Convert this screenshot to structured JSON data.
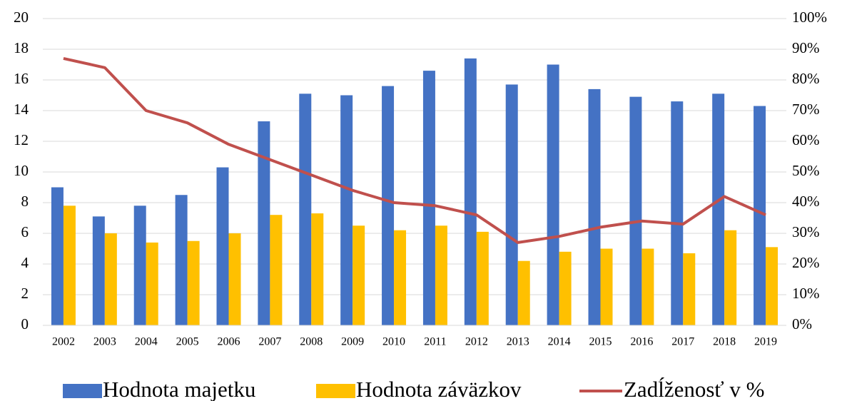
{
  "chart_data": {
    "type": "bar_line",
    "categories": [
      "2002",
      "2003",
      "2004",
      "2005",
      "2006",
      "2007",
      "2008",
      "2009",
      "2010",
      "2011",
      "2012",
      "2013",
      "2014",
      "2015",
      "2016",
      "2017",
      "2018",
      "2019"
    ],
    "series": [
      {
        "name": "Hodnota majetku",
        "type": "bar",
        "color": "#4472c4",
        "values": [
          9.0,
          7.1,
          7.8,
          8.5,
          10.3,
          13.3,
          15.1,
          15.0,
          15.6,
          16.6,
          17.4,
          15.7,
          17.0,
          15.4,
          14.9,
          14.6,
          15.1,
          14.3
        ]
      },
      {
        "name": "Hodnota záväzkov",
        "type": "bar",
        "color": "#ffc000",
        "values": [
          7.8,
          6.0,
          5.4,
          5.5,
          6.0,
          7.2,
          7.3,
          6.5,
          6.2,
          6.5,
          6.1,
          4.2,
          4.8,
          5.0,
          5.0,
          4.7,
          6.2,
          5.1
        ]
      },
      {
        "name": "Zadĺženosť v %",
        "type": "line",
        "axis": "y2",
        "color": "#c0504d",
        "values": [
          87,
          84,
          70,
          66,
          59,
          54,
          49,
          44,
          40,
          39,
          36,
          27,
          29,
          32,
          34,
          33,
          42,
          36
        ]
      }
    ],
    "ylim": [
      0,
      20
    ],
    "yticks": [
      0,
      2,
      4,
      6,
      8,
      10,
      12,
      14,
      16,
      18,
      20
    ],
    "y2lim": [
      0,
      100
    ],
    "y2ticks": [
      {
        "value": 0,
        "label": "0%"
      },
      {
        "value": 10,
        "label": "10%"
      },
      {
        "value": 20,
        "label": "20%"
      },
      {
        "value": 30,
        "label": "30%"
      },
      {
        "value": 40,
        "label": "40%"
      },
      {
        "value": 50,
        "label": "50%"
      },
      {
        "value": 60,
        "label": "60%"
      },
      {
        "value": 70,
        "label": "70%"
      },
      {
        "value": 80,
        "label": "80%"
      },
      {
        "value": 90,
        "label": "90%"
      },
      {
        "value": 100,
        "label": "100%"
      }
    ],
    "grid": true,
    "legend": "bottom"
  }
}
